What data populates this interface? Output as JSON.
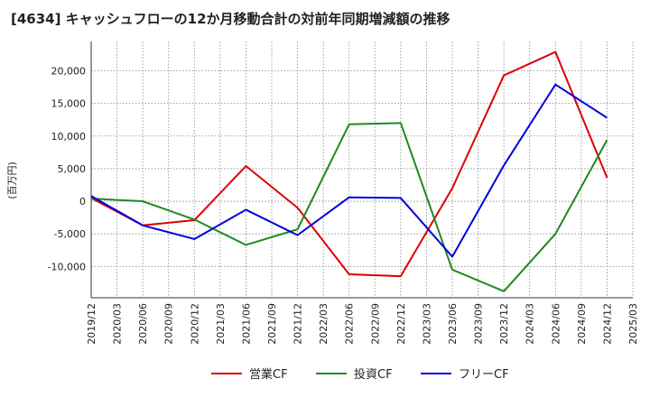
{
  "chart_data": {
    "type": "line",
    "title": "[4634]  キャッシュフローの12か月移動合計の対前年同期増減額の推移",
    "ylabel": "(百万円)",
    "xlabel": "",
    "ylim": [
      -14800,
      24500
    ],
    "yticks": [
      -10000,
      -5000,
      0,
      5000,
      10000,
      15000,
      20000
    ],
    "ytick_labels": [
      "-10,000",
      "-5,000",
      "0",
      "5,000",
      "10,000",
      "15,000",
      "20,000"
    ],
    "x_tick_labels": [
      "2019/12",
      "2020/03",
      "2020/06",
      "2020/09",
      "2020/12",
      "2021/03",
      "2021/06",
      "2021/09",
      "2021/12",
      "2022/03",
      "2022/06",
      "2022/09",
      "2022/12",
      "2023/03",
      "2023/06",
      "2023/09",
      "2023/12",
      "2024/03",
      "2024/06",
      "2024/09",
      "2024/12",
      "2025/03"
    ],
    "x": [
      "2019/12",
      "2020/06",
      "2020/12",
      "2021/06",
      "2021/12",
      "2022/06",
      "2022/12",
      "2023/06",
      "2023/12",
      "2024/06",
      "2024/12"
    ],
    "grid": true,
    "legend_position": "bottom",
    "series": [
      {
        "name": "営業CF",
        "color": "#dd0000",
        "values": [
          500,
          -3700,
          -2900,
          5400,
          -1000,
          -11200,
          -11500,
          2000,
          19300,
          22900,
          3600
        ]
      },
      {
        "name": "投資CF",
        "color": "#228822",
        "values": [
          400,
          0,
          -2800,
          -6700,
          -4300,
          11800,
          12000,
          -10500,
          -13800,
          -5000,
          9400
        ]
      },
      {
        "name": "フリーCF",
        "color": "#0000dd",
        "values": [
          800,
          -3700,
          -5800,
          -1300,
          -5200,
          600,
          500,
          -8500,
          5500,
          17900,
          12800
        ]
      }
    ]
  }
}
